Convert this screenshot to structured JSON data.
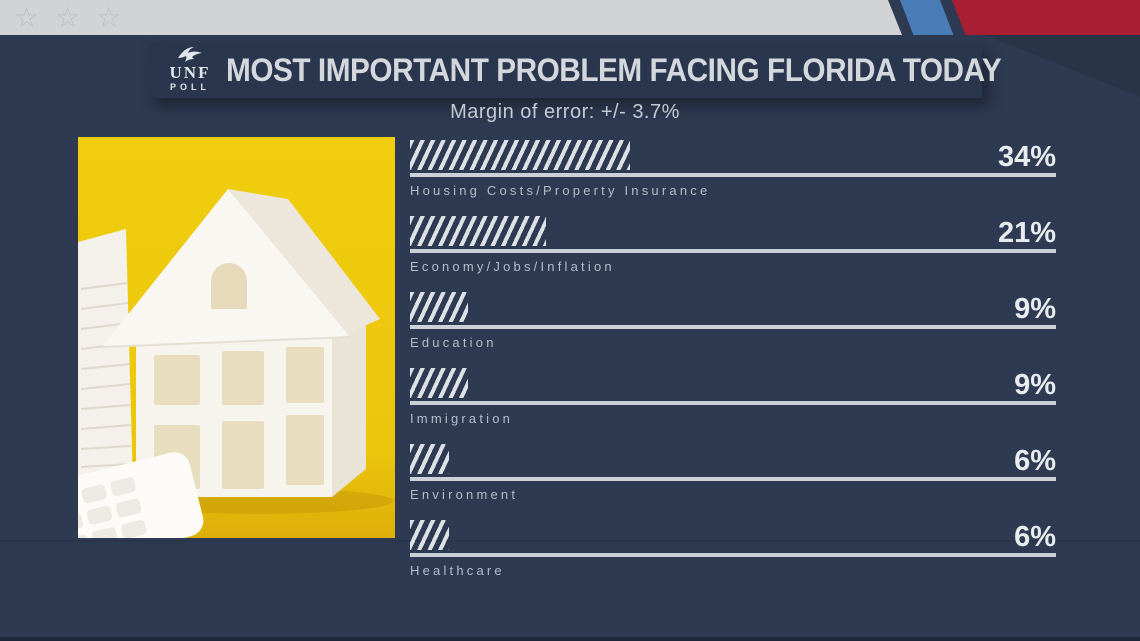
{
  "top_bar": {
    "star_icons": [
      "☆",
      "☆",
      "☆"
    ]
  },
  "header": {
    "logo": {
      "org": "UNF",
      "unit": "POLL"
    },
    "title": "MOST IMPORTANT PROBLEM FACING FLORIDA TODAY",
    "subtitle": "Margin of error: +/- 3.7%"
  },
  "photo": {
    "description": "white paper model house on yellow background with calculator and book"
  },
  "chart_data": {
    "type": "bar",
    "orientation": "horizontal",
    "title": "MOST IMPORTANT PROBLEM FACING FLORIDA TODAY",
    "subtitle": "Margin of error: +/- 3.7%",
    "source": "UNF Poll",
    "categories": [
      "Housing Costs/Property Insurance",
      "Economy/Jobs/Inflation",
      "Education",
      "Immigration",
      "Environment",
      "Healthcare"
    ],
    "values": [
      34,
      21,
      9,
      9,
      6,
      6
    ],
    "value_labels": [
      "34%",
      "21%",
      "9%",
      "9%",
      "6%",
      "6%"
    ],
    "xlim": [
      0,
      100
    ],
    "grid": false,
    "legend": false,
    "bar_style": "diagonal-hatch"
  },
  "colors": {
    "background": "#2e3a52",
    "panel": "#29364e",
    "strip_gray": "#d1d3d5",
    "accent_blue": "#4a7cb8",
    "accent_red": "#a81e33",
    "bar_hatch": "#dde1e6",
    "underline": "#ccd1d7",
    "label_text": "#b6bdc8",
    "value_text": "#e9ecef",
    "photo_yellow": "#eec90d"
  }
}
